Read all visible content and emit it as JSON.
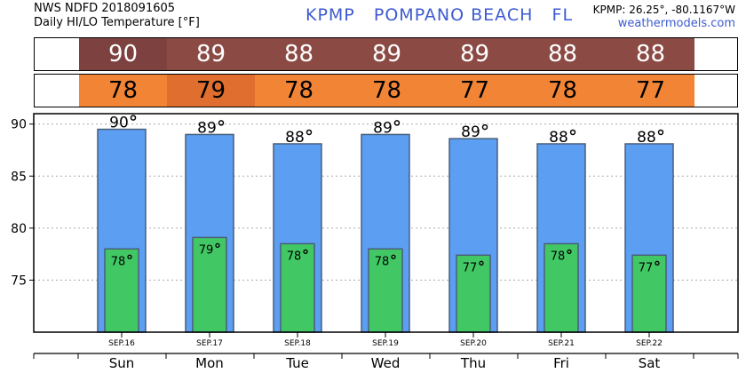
{
  "header": {
    "line1": "NWS NDFD 2018091605",
    "line2": "Daily HI/LO Temperature [°F]",
    "station": "KPMP   POMPANO BEACH   FL",
    "coords": "KPMP: 26.25°, -80.1167°W",
    "site": "weathermodels.com"
  },
  "colors": {
    "hi_strip": "#8c4a45",
    "hi_strip_dark": "#7d4240",
    "lo_strip": "#f28535",
    "lo_strip_dark": "#e06e2e",
    "hi_bar": "#5b9ef2",
    "lo_bar": "#41c864"
  },
  "chart_data": {
    "type": "bar",
    "categories": [
      "Sun",
      "Mon",
      "Tue",
      "Wed",
      "Thu",
      "Fri",
      "Sat"
    ],
    "dates": [
      "SEP.16",
      "SEP.17",
      "SEP.18",
      "SEP.19",
      "SEP.20",
      "SEP.21",
      "SEP.22"
    ],
    "series": [
      {
        "values": [
          89.5,
          89.0,
          88.1,
          89.0,
          88.6,
          88.1,
          88.1
        ]
      },
      {
        "values": [
          78.0,
          79.1,
          78.5,
          78.0,
          77.4,
          78.5,
          77.4
        ]
      }
    ],
    "hi_labels": [
      "90",
      "89",
      "88",
      "89",
      "89",
      "88",
      "88"
    ],
    "lo_labels": [
      "78",
      "79",
      "78",
      "78",
      "77",
      "78",
      "77"
    ],
    "ylim": [
      70,
      91
    ],
    "yticks": [
      75,
      80,
      85,
      90
    ],
    "grid": true
  }
}
